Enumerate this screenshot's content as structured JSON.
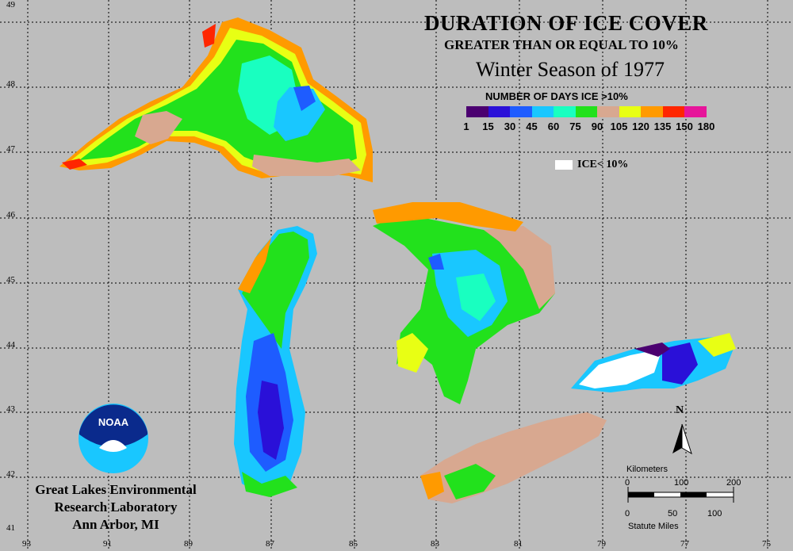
{
  "title": "DURATION OF ICE COVER",
  "subtitle": "GREATER THAN OR EQUAL TO 10%",
  "season": "Winter Season of 1977",
  "legend": {
    "title": "NUMBER OF DAYS ICE >10%",
    "colors": [
      "#4b0070",
      "#2a10d8",
      "#1e5cff",
      "#19c7ff",
      "#19ffc0",
      "#22e11c",
      "#d8a890",
      "#e8ff14",
      "#ff9a00",
      "#ff2600",
      "#e6159a"
    ],
    "labels": [
      "1",
      "15",
      "30",
      "45",
      "60",
      "75",
      "90",
      "105",
      "120",
      "135",
      "150",
      "180"
    ],
    "ice_less_label": "ICE< 10%"
  },
  "lat_ticks": [
    "49",
    "48",
    "47",
    "46",
    "45",
    "44",
    "43",
    "42",
    "41"
  ],
  "lon_ticks": [
    "93",
    "91",
    "89",
    "87",
    "85",
    "83",
    "81",
    "79",
    "77",
    "75"
  ],
  "org": {
    "line1": "Great Lakes Environmental",
    "line2": "Research Laboratory",
    "line3": "Ann Arbor, MI",
    "logo_text": "NOAA"
  },
  "compass": "N",
  "scale": {
    "km_label": "Kilometers",
    "km_ticks": [
      "0",
      "100",
      "200"
    ],
    "mi_label": "Statute Miles",
    "mi_ticks": [
      "0",
      "50",
      "100"
    ]
  }
}
